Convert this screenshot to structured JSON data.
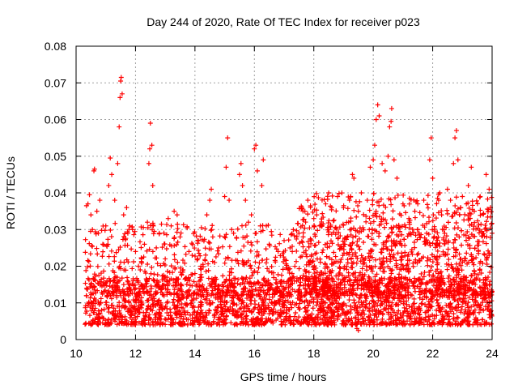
{
  "chart_data": {
    "type": "scatter",
    "title": "Day 244 of 2020, Rate Of TEC Index for receiver p023",
    "xlabel": "GPS time / hours",
    "ylabel": "ROTI / TECUs",
    "xlim": [
      10,
      24
    ],
    "ylim": [
      0,
      0.08
    ],
    "x_ticks": [
      10,
      12,
      14,
      16,
      18,
      20,
      22,
      24
    ],
    "y_ticks": [
      "0",
      "0.01",
      "0.02",
      "0.03",
      "0.04",
      "0.05",
      "0.06",
      "0.07",
      "0.08"
    ],
    "grid": true,
    "marker": "+",
    "color": "#ff0000",
    "series": [
      {
        "name": "ROTI",
        "points": [
          [
            10.35,
            0.0365
          ],
          [
            10.4,
            0.037
          ],
          [
            10.45,
            0.0395
          ],
          [
            10.5,
            0.034
          ],
          [
            10.55,
            0.03
          ],
          [
            10.6,
            0.046
          ],
          [
            10.62,
            0.0465
          ],
          [
            10.7,
            0.035
          ],
          [
            10.75,
            0.029
          ],
          [
            10.8,
            0.038
          ],
          [
            10.9,
            0.026
          ],
          [
            11.0,
            0.031
          ],
          [
            11.1,
            0.042
          ],
          [
            11.15,
            0.0495
          ],
          [
            11.2,
            0.045
          ],
          [
            11.3,
            0.038
          ],
          [
            11.4,
            0.048
          ],
          [
            11.45,
            0.058
          ],
          [
            11.48,
            0.066
          ],
          [
            11.5,
            0.0705
          ],
          [
            11.52,
            0.0715
          ],
          [
            11.55,
            0.067
          ],
          [
            11.6,
            0.034
          ],
          [
            11.7,
            0.036
          ],
          [
            11.8,
            0.031
          ],
          [
            11.9,
            0.03
          ],
          [
            12.0,
            0.024
          ],
          [
            12.1,
            0.02
          ],
          [
            12.2,
            0.022
          ],
          [
            12.3,
            0.026
          ],
          [
            12.4,
            0.032
          ],
          [
            12.45,
            0.048
          ],
          [
            12.48,
            0.052
          ],
          [
            12.5,
            0.059
          ],
          [
            12.55,
            0.053
          ],
          [
            12.58,
            0.042
          ],
          [
            12.6,
            0.031
          ],
          [
            12.7,
            0.025
          ],
          [
            12.8,
            0.029
          ],
          [
            13.0,
            0.022
          ],
          [
            13.1,
            0.033
          ],
          [
            13.2,
            0.031
          ],
          [
            13.3,
            0.035
          ],
          [
            13.4,
            0.034
          ],
          [
            13.5,
            0.028
          ],
          [
            13.6,
            0.019
          ],
          [
            13.8,
            0.024
          ],
          [
            14.0,
            0.018
          ],
          [
            14.2,
            0.02
          ],
          [
            14.4,
            0.034
          ],
          [
            14.5,
            0.038
          ],
          [
            14.55,
            0.041
          ],
          [
            14.6,
            0.028
          ],
          [
            14.8,
            0.025
          ],
          [
            15.0,
            0.039
          ],
          [
            15.05,
            0.047
          ],
          [
            15.1,
            0.055
          ],
          [
            15.15,
            0.038
          ],
          [
            15.3,
            0.029
          ],
          [
            15.5,
            0.045
          ],
          [
            15.55,
            0.048
          ],
          [
            15.6,
            0.042
          ],
          [
            15.7,
            0.038
          ],
          [
            15.8,
            0.032
          ],
          [
            15.9,
            0.034
          ],
          [
            16.0,
            0.052
          ],
          [
            16.05,
            0.053
          ],
          [
            16.1,
            0.046
          ],
          [
            16.2,
            0.031
          ],
          [
            16.25,
            0.042
          ],
          [
            16.3,
            0.049
          ],
          [
            16.4,
            0.031
          ],
          [
            16.5,
            0.026
          ],
          [
            16.8,
            0.024
          ],
          [
            17.0,
            0.027
          ],
          [
            17.2,
            0.025
          ],
          [
            17.5,
            0.029
          ],
          [
            17.6,
            0.036
          ],
          [
            17.7,
            0.035
          ],
          [
            17.8,
            0.038
          ],
          [
            18.0,
            0.033
          ],
          [
            18.2,
            0.031
          ],
          [
            18.4,
            0.037
          ],
          [
            18.5,
            0.04
          ],
          [
            18.6,
            0.036
          ],
          [
            18.8,
            0.039
          ],
          [
            19.0,
            0.036
          ],
          [
            19.2,
            0.038
          ],
          [
            19.3,
            0.045
          ],
          [
            19.35,
            0.044
          ],
          [
            19.5,
            0.035
          ],
          [
            19.6,
            0.04
          ],
          [
            19.8,
            0.038
          ],
          [
            19.9,
            0.047
          ],
          [
            20.0,
            0.049
          ],
          [
            20.05,
            0.053
          ],
          [
            20.1,
            0.06
          ],
          [
            20.15,
            0.064
          ],
          [
            20.2,
            0.061
          ],
          [
            20.3,
            0.048
          ],
          [
            20.4,
            0.046
          ],
          [
            20.5,
            0.05
          ],
          [
            20.55,
            0.058
          ],
          [
            20.6,
            0.0595
          ],
          [
            20.62,
            0.063
          ],
          [
            20.7,
            0.049
          ],
          [
            20.8,
            0.044
          ],
          [
            21.0,
            0.037
          ],
          [
            21.2,
            0.033
          ],
          [
            21.4,
            0.035
          ],
          [
            21.5,
            0.037
          ],
          [
            21.7,
            0.038
          ],
          [
            21.8,
            0.029
          ],
          [
            21.9,
            0.049
          ],
          [
            21.95,
            0.055
          ],
          [
            22.0,
            0.044
          ],
          [
            22.2,
            0.038
          ],
          [
            22.3,
            0.034
          ],
          [
            22.5,
            0.041
          ],
          [
            22.6,
            0.038
          ],
          [
            22.7,
            0.048
          ],
          [
            22.75,
            0.055
          ],
          [
            22.8,
            0.057
          ],
          [
            22.85,
            0.049
          ],
          [
            22.9,
            0.034
          ],
          [
            23.0,
            0.039
          ],
          [
            23.2,
            0.042
          ],
          [
            23.3,
            0.047
          ],
          [
            23.4,
            0.035
          ],
          [
            23.6,
            0.039
          ],
          [
            23.8,
            0.045
          ],
          [
            23.9,
            0.041
          ],
          [
            24.0,
            0.029
          ],
          [
            19.45,
            0.003
          ],
          [
            19.5,
            0.0025
          ],
          [
            19.3,
            0.004
          ],
          [
            10.5,
            0.004
          ],
          [
            12.0,
            0.004
          ],
          [
            14.0,
            0.005
          ],
          [
            16.0,
            0.004
          ],
          [
            18.0,
            0.005
          ],
          [
            21.0,
            0.004
          ],
          [
            23.0,
            0.005
          ]
        ]
      }
    ],
    "dense_bands": [
      {
        "x": [
          10.3,
          24.0
        ],
        "y": [
          0.004,
          0.017
        ],
        "count": 2200
      },
      {
        "x": [
          10.3,
          24.0
        ],
        "y": [
          0.012,
          0.032
        ],
        "count": 900
      },
      {
        "x": [
          17.5,
          24.0
        ],
        "y": [
          0.012,
          0.04
        ],
        "count": 700
      }
    ]
  }
}
